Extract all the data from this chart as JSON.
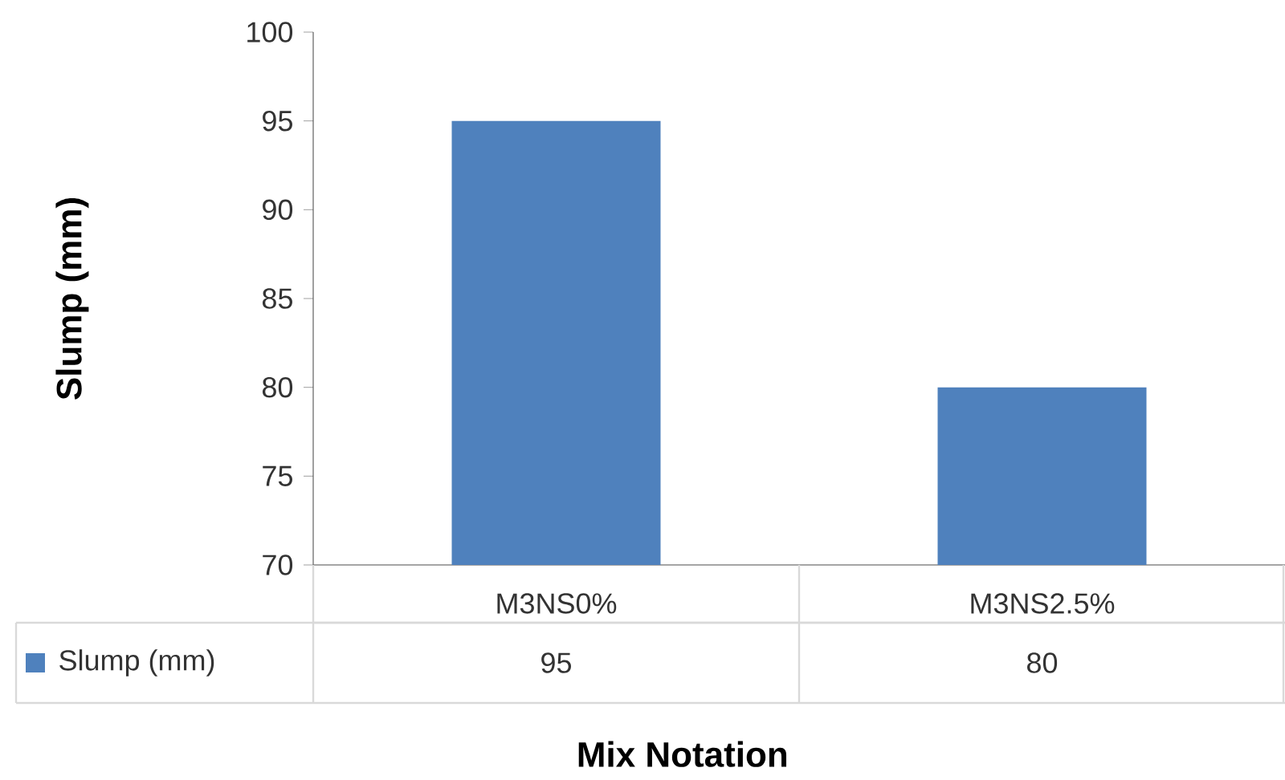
{
  "chart_data": {
    "type": "bar",
    "xlabel": "Mix Notation",
    "ylabel": "Slump (mm)",
    "categories": [
      "M3NS0%",
      "M3NS2.5%"
    ],
    "series": [
      {
        "name": "Slump (mm)",
        "color": "#4f81bd",
        "values": [
          95,
          80
        ]
      }
    ],
    "ylim": [
      70,
      100
    ],
    "yticks": [
      70,
      75,
      80,
      85,
      90,
      95,
      100
    ],
    "data_labels": true,
    "legend": "bottom"
  }
}
